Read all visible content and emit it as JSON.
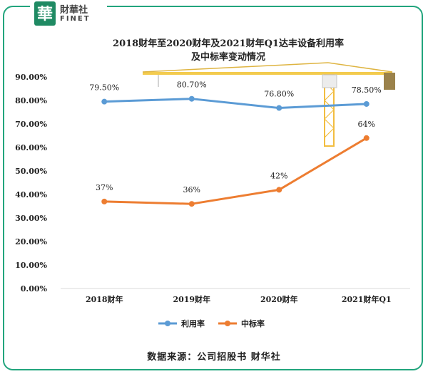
{
  "brand": {
    "name_cn": "財華社",
    "name_en": "FINET",
    "seal_char": "華",
    "color": "#1f8a63"
  },
  "source_text": "数据来源：公司招股书 财华社",
  "chart_data": {
    "type": "line",
    "title_lines": [
      "2018财年至2020财年及2021财年Q1达丰设备利用率",
      "及中标率变动情况"
    ],
    "categories": [
      "2018财年",
      "2019财年",
      "2020财年",
      "2021财年Q1"
    ],
    "ylim": [
      0,
      90
    ],
    "yticks": [
      "0.00%",
      "10.00%",
      "20.00%",
      "30.00%",
      "40.00%",
      "50.00%",
      "60.00%",
      "70.00%",
      "80.00%",
      "90.00%"
    ],
    "series": [
      {
        "name": "利用率",
        "color": "#5b9bd5",
        "values": [
          79.5,
          80.7,
          76.8,
          78.5
        ],
        "labels": [
          "79.50%",
          "80.70%",
          "76.80%",
          "78.50%"
        ]
      },
      {
        "name": "中标率",
        "color": "#ed7d31",
        "values": [
          37,
          36,
          42,
          64
        ],
        "labels": [
          "37%",
          "36%",
          "42%",
          "64%"
        ]
      }
    ],
    "legend_position": "bottom"
  }
}
